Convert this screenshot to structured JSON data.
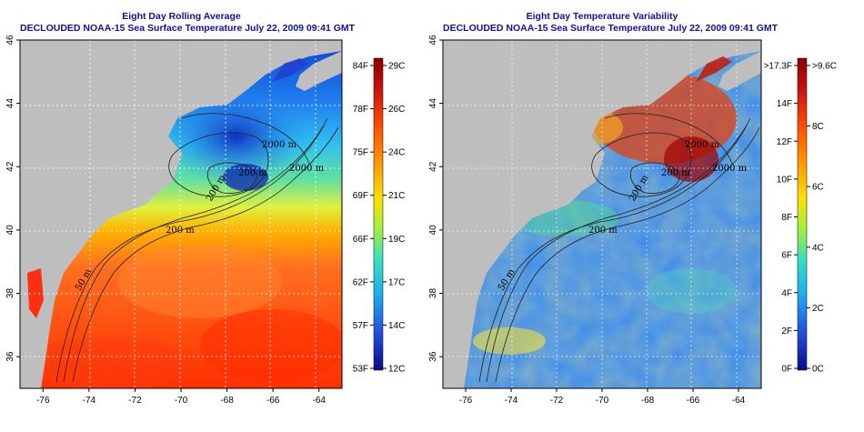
{
  "panels": [
    {
      "id": "left",
      "title_line1": "Eight Day Rolling Average",
      "title_line2": "DECLOUDED NOAA-15 Sea Surface Temperature July 22, 2009 09:41 GMT",
      "colorbar_left_labels": [
        "84F",
        "78F",
        "75F",
        "69F",
        "66F",
        "62F",
        "57F",
        "53F"
      ],
      "colorbar_right_labels": [
        "29C",
        "26C",
        "24C",
        "21C",
        "19C",
        "17C",
        "14C",
        "12C"
      ],
      "contour_labels": [
        "2000 m",
        "200 m",
        "50 m",
        "200 m",
        "2000 m",
        "200 m"
      ]
    },
    {
      "id": "right",
      "title_line1": "Eight Day Temperature Variability",
      "title_line2": "DECLOUDED NOAA-15 Sea Surface Temperature July 22, 2009 09:41 GMT",
      "colorbar_left_labels": [
        ">17.3F",
        "14F",
        "12F",
        "10F",
        "8F",
        "6F",
        "4F",
        "2F",
        "0F"
      ],
      "colorbar_right_labels": [
        ">9.6C",
        "8C",
        "6C",
        "4C",
        "2C",
        "0C"
      ],
      "contour_labels": [
        "2000 m",
        "200 m",
        "50 m",
        "200 m",
        "2000 m",
        "200 m"
      ]
    }
  ],
  "axes": {
    "x_ticks": [
      "-76",
      "-74",
      "-72",
      "-70",
      "-68",
      "-66",
      "-64"
    ],
    "y_ticks": [
      "36",
      "38",
      "40",
      "42",
      "44",
      "46"
    ]
  },
  "colors": {
    "title": "#1010a0",
    "land": "#bebebe",
    "ocean_warm": "#ff3a00",
    "ocean_cool": "#1030d0"
  }
}
